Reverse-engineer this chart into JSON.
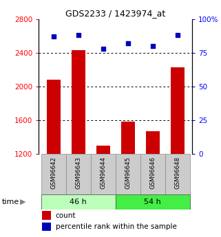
{
  "title": "GDS2233 / 1423974_at",
  "samples": [
    "GSM96642",
    "GSM96643",
    "GSM96644",
    "GSM96645",
    "GSM96646",
    "GSM96648"
  ],
  "counts": [
    2080,
    2430,
    1300,
    1580,
    1470,
    2230
  ],
  "percentiles": [
    87,
    88,
    78,
    82,
    80,
    88
  ],
  "groups": [
    {
      "label": "46 h",
      "indices": [
        0,
        1,
        2
      ],
      "color": "#bbffbb"
    },
    {
      "label": "54 h",
      "indices": [
        3,
        4,
        5
      ],
      "color": "#44ee44"
    }
  ],
  "ylim_left": [
    1200,
    2800
  ],
  "ylim_right": [
    0,
    100
  ],
  "yticks_left": [
    1200,
    1600,
    2000,
    2400,
    2800
  ],
  "yticks_right": [
    0,
    25,
    50,
    75,
    100
  ],
  "bar_color": "#cc0000",
  "dot_color": "#0000bb",
  "bar_width": 0.55,
  "grid_lines": [
    1600,
    2000,
    2400
  ],
  "bg_color": "#ffffff",
  "sample_box_color": "#cccccc",
  "time_label": "time"
}
